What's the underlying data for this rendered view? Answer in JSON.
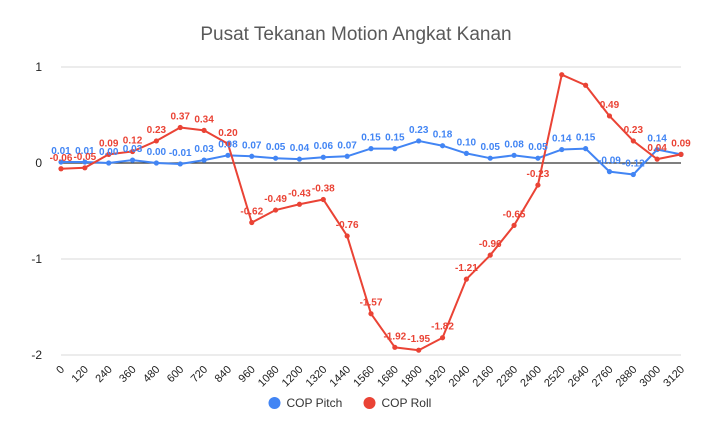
{
  "chart_data": {
    "type": "line",
    "title": "Pusat Tekanan Motion Angkat Kanan",
    "xlabel": "",
    "ylabel": "",
    "ylim": [
      -2,
      1
    ],
    "yticks": [
      1,
      0,
      -1,
      -2
    ],
    "yticks_labels": [
      "1",
      "0",
      "-1",
      "-2"
    ],
    "grid": true,
    "legend": "bottom",
    "categories": [
      "0",
      "120",
      "240",
      "360",
      "480",
      "600",
      "720",
      "840",
      "960",
      "1080",
      "1200",
      "1320",
      "1440",
      "1560",
      "1680",
      "1800",
      "1920",
      "2040",
      "2160",
      "2280",
      "2400",
      "2520",
      "2640",
      "2760",
      "2880",
      "3000",
      "3120"
    ],
    "series": [
      {
        "name": "COP Pitch",
        "color": "#4285f4",
        "values": [
          0.01,
          0.01,
          0.0,
          0.03,
          0.0,
          -0.01,
          0.03,
          0.08,
          0.07,
          0.05,
          0.04,
          0.06,
          0.07,
          0.15,
          0.15,
          0.23,
          0.18,
          0.1,
          0.05,
          0.08,
          0.05,
          0.14,
          0.15,
          -0.09,
          -0.12,
          0.14,
          0.09
        ],
        "labels": [
          "0.01",
          "0.01",
          "0.00",
          "0.03",
          "0.00",
          "-0.01",
          "0.03",
          "0.08",
          "0.07",
          "0.05",
          "0.04",
          "0.06",
          "0.07",
          "0.15",
          "0.15",
          "0.23",
          "0.18",
          "0.10",
          "0.05",
          "0.08",
          "0.05",
          "0.14",
          "0.15",
          "-0.09",
          "-0.12",
          "0.14",
          ""
        ]
      },
      {
        "name": "COP Roll",
        "color": "#ea4335",
        "values": [
          -0.06,
          -0.05,
          0.09,
          0.12,
          0.23,
          0.37,
          0.34,
          0.2,
          -0.62,
          -0.49,
          -0.43,
          -0.38,
          -0.76,
          -1.57,
          -1.92,
          -1.95,
          -1.82,
          -1.21,
          -0.96,
          -0.65,
          -0.23,
          0.92,
          0.81,
          0.49,
          0.23,
          0.04,
          0.09
        ],
        "labels": [
          "-0.06",
          "-0.05",
          "0.09",
          "0.12",
          "0.23",
          "0.37",
          "0.34",
          "0.20",
          "-0.62",
          "-0.49",
          "-0.43",
          "-0.38",
          "-0.76",
          "-1.57",
          "-1.92",
          "-1.95",
          "-1.82",
          "-1.21",
          "-0.96",
          "-0.65",
          "-0.23",
          "",
          "",
          "0.49",
          "0.23",
          "0.04",
          "0.09"
        ]
      }
    ]
  }
}
